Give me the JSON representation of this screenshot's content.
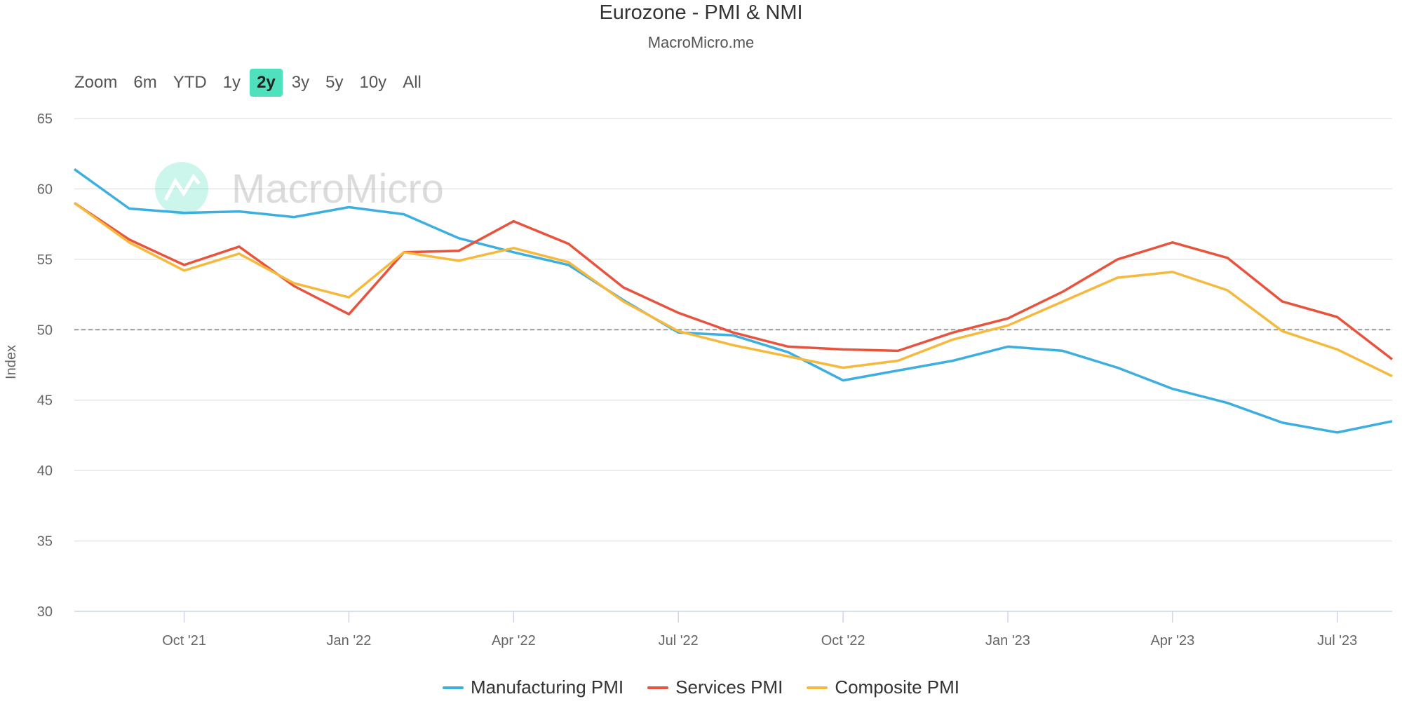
{
  "chart_data": {
    "type": "line",
    "title": "Eurozone - PMI & NMI",
    "subtitle": "MacroMicro.me",
    "watermark": "MacroMicro",
    "ylabel": "Index",
    "xlabel": "",
    "ylim": [
      30,
      65
    ],
    "yticks": [
      30,
      35,
      40,
      45,
      50,
      55,
      60,
      65
    ],
    "reference_line": 50,
    "x": [
      "2021-08",
      "2021-09",
      "2021-10",
      "2021-11",
      "2021-12",
      "2022-01",
      "2022-02",
      "2022-03",
      "2022-04",
      "2022-05",
      "2022-06",
      "2022-07",
      "2022-08",
      "2022-09",
      "2022-10",
      "2022-11",
      "2022-12",
      "2023-01",
      "2023-02",
      "2023-03",
      "2023-04",
      "2023-05",
      "2023-06",
      "2023-07",
      "2023-08"
    ],
    "xticks": [
      {
        "index": 2,
        "label": "Oct '21"
      },
      {
        "index": 5,
        "label": "Jan '22"
      },
      {
        "index": 8,
        "label": "Apr '22"
      },
      {
        "index": 11,
        "label": "Jul '22"
      },
      {
        "index": 14,
        "label": "Oct '22"
      },
      {
        "index": 17,
        "label": "Jan '23"
      },
      {
        "index": 20,
        "label": "Apr '23"
      },
      {
        "index": 23,
        "label": "Jul '23"
      }
    ],
    "grid": true,
    "legend_position": "bottom-center",
    "series": [
      {
        "name": "Manufacturing PMI",
        "color": "#3daee0",
        "values": [
          61.4,
          58.6,
          58.3,
          58.4,
          58.0,
          58.7,
          58.2,
          56.5,
          55.5,
          54.6,
          52.1,
          49.8,
          49.6,
          48.4,
          46.4,
          47.1,
          47.8,
          48.8,
          48.5,
          47.3,
          45.8,
          44.8,
          43.4,
          42.7,
          43.5
        ]
      },
      {
        "name": "Services PMI",
        "color": "#e8533e",
        "values": [
          59.0,
          56.4,
          54.6,
          55.9,
          53.1,
          51.1,
          55.5,
          55.6,
          57.7,
          56.1,
          53.0,
          51.2,
          49.8,
          48.8,
          48.6,
          48.5,
          49.8,
          50.8,
          52.7,
          55.0,
          56.2,
          55.1,
          52.0,
          50.9,
          47.9
        ]
      },
      {
        "name": "Composite PMI",
        "color": "#f5b93d",
        "values": [
          59.0,
          56.2,
          54.2,
          55.4,
          53.3,
          52.3,
          55.5,
          54.9,
          55.8,
          54.8,
          52.0,
          49.9,
          48.9,
          48.1,
          47.3,
          47.8,
          49.3,
          50.3,
          52.0,
          53.7,
          54.1,
          52.8,
          49.9,
          48.6,
          46.7
        ]
      }
    ]
  },
  "zoom": {
    "label": "Zoom",
    "buttons": [
      "6m",
      "YTD",
      "1y",
      "2y",
      "3y",
      "5y",
      "10y",
      "All"
    ],
    "selected": "2y",
    "active_color": "#4fe0bd"
  }
}
